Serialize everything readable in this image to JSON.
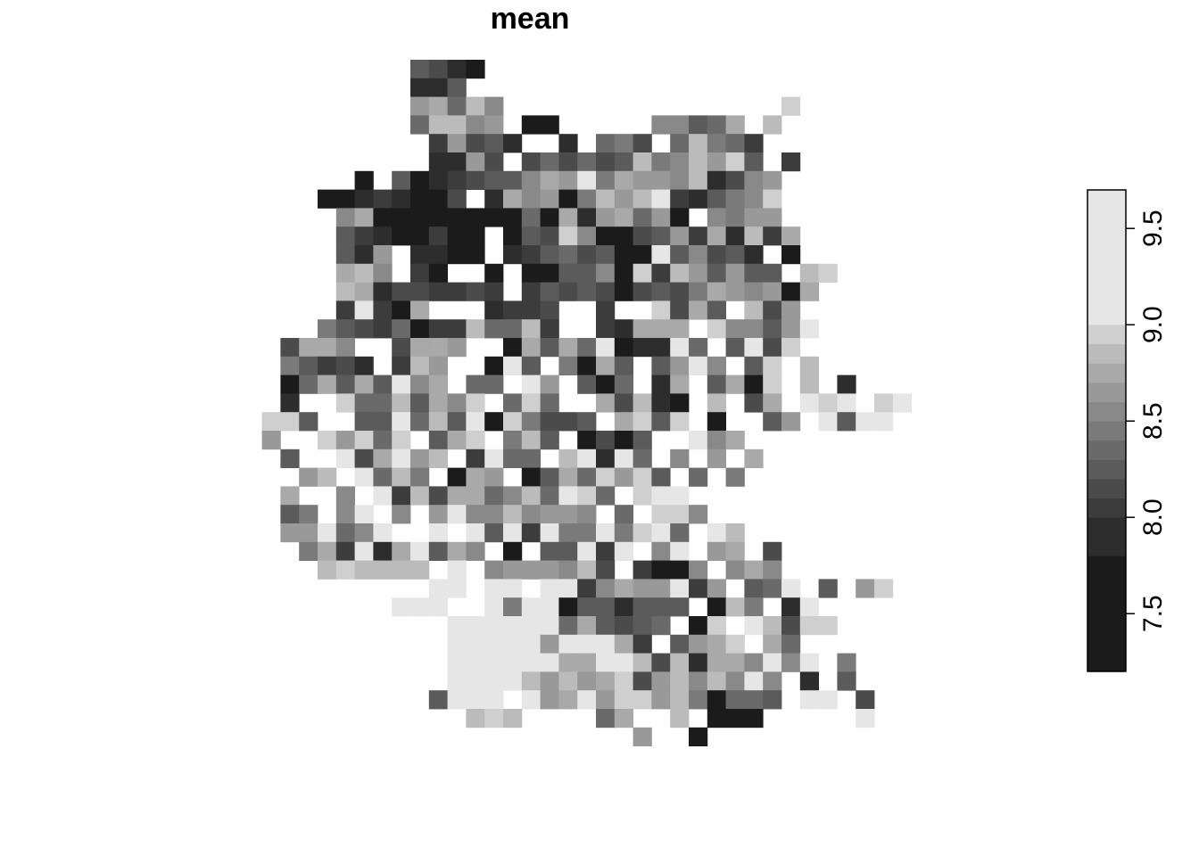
{
  "chart_data": {
    "type": "heatmap",
    "title": "mean",
    "xlabel": "",
    "ylabel": "",
    "grid": false,
    "legend_placement": "right",
    "color_scale": {
      "palette": "greys",
      "breaks": [
        7.2,
        7.8,
        8.0,
        8.1,
        8.2,
        8.3,
        8.4,
        8.5,
        8.6,
        8.7,
        8.8,
        8.9,
        9.0,
        9.7
      ],
      "colors": [
        "#1b1b1b",
        "#2d2d2d",
        "#3c3c3c",
        "#4b4b4b",
        "#5b5b5b",
        "#6a6a6a",
        "#7a7a7a",
        "#898989",
        "#999999",
        "#a9a9a9",
        "#bbbbbb",
        "#cfcfcf",
        "#e6e6e6"
      ],
      "ticks": [
        "7.5",
        "8.0",
        "8.5",
        "9.0",
        "9.5"
      ],
      "tick_values": [
        7.5,
        8.0,
        8.5,
        9.0,
        9.5
      ]
    },
    "grid_values": [
      "..........................................",
      "..........................................",
      "..........................................",
      "..................................",
      "..........................................",
      ".......................................",
      ".........................................."
    ],
    "row_strings": [
      "....................................",
      "...........................................",
      "........................................",
      "..........................................",
      ".........................................."
    ]
  }
}
